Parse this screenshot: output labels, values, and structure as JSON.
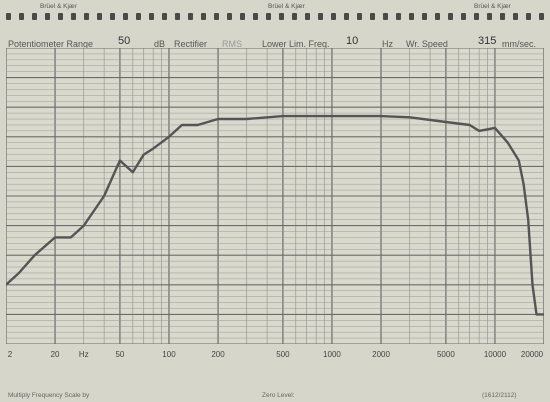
{
  "brand": "Brüel & Kjær",
  "header": {
    "pot_range_label": "Potentiometer Range",
    "pot_range_value": "50",
    "pot_unit": "dB",
    "rectifier_label": "Rectifier",
    "rectifier_value": "RMS",
    "lower_lim_label": "Lower Lim. Freq.",
    "lower_lim_value": "10",
    "hz_unit": "Hz",
    "wr_speed_label": "Wr. Speed",
    "wr_speed_value": "315",
    "speed_unit": "mm/sec."
  },
  "footer": {
    "left": "Multiply Frequency Scale by",
    "middle": "Zero Level:",
    "right": "(1612/2112)"
  },
  "chart_data": {
    "type": "line",
    "xscale": "log",
    "xlim": [
      10,
      20000
    ],
    "ylim": [
      0,
      50
    ],
    "grid": true,
    "xticks": [
      "2",
      "20",
      "Hz",
      "50",
      "100",
      "200",
      "500",
      "1000",
      "2000",
      "5000",
      "10000",
      "20000"
    ],
    "series": [
      {
        "x": [
          10,
          12,
          15,
          20,
          25,
          30,
          40,
          50,
          60,
          70,
          80,
          100,
          120,
          150,
          200,
          300,
          500,
          1000,
          2000,
          3000,
          5000,
          7000,
          8000,
          10000,
          12000,
          14000,
          15000,
          16000,
          17000,
          18000,
          20000
        ],
        "y": [
          10,
          12,
          15,
          18,
          18,
          20,
          25,
          31,
          29,
          32,
          33,
          35,
          37,
          37,
          38,
          38,
          38.5,
          38.5,
          38.5,
          38.3,
          37.5,
          37,
          36,
          36.5,
          34,
          31,
          27,
          21,
          10,
          5,
          5
        ]
      }
    ]
  }
}
